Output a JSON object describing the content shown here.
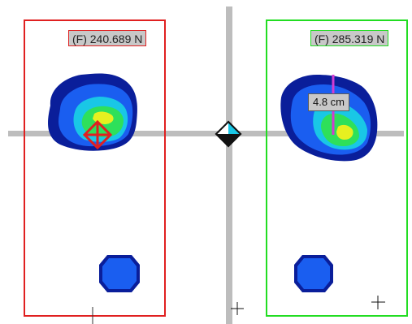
{
  "left_foot": {
    "force_label": "(F) 240.689 N",
    "border_color": "#e02020"
  },
  "right_foot": {
    "force_label": "(F) 285.319 N",
    "border_color": "#22dd22",
    "measurement_label": "4.8 cm",
    "measurement_color": "#d23bd2"
  },
  "colors": {
    "axis": "#bdbdbd",
    "pressure_low": "#0a1e9a",
    "pressure_mid": "#1a5ef0",
    "pressure_cyan": "#19c7e6",
    "pressure_green": "#2ee05a",
    "pressure_yellow": "#e6f020",
    "cop_marker": "#e02020",
    "center_marker": "#111111"
  }
}
